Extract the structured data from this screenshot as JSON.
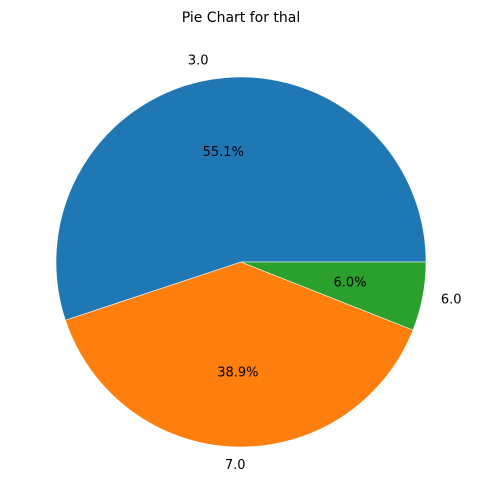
{
  "chart_data": {
    "type": "pie",
    "title": "Pie Chart for thal",
    "slices": [
      {
        "label": "3.0",
        "value": 55.1,
        "pct_text": "55.1%",
        "color": "#1f77b4"
      },
      {
        "label": "7.0",
        "value": 38.9,
        "pct_text": "38.9%",
        "color": "#ff7f0e"
      },
      {
        "label": "6.0",
        "value": 6.0,
        "pct_text": "6.0%",
        "color": "#2ca02c"
      }
    ],
    "start_angle": 0,
    "direction": "counterclockwise",
    "legend": "none"
  }
}
